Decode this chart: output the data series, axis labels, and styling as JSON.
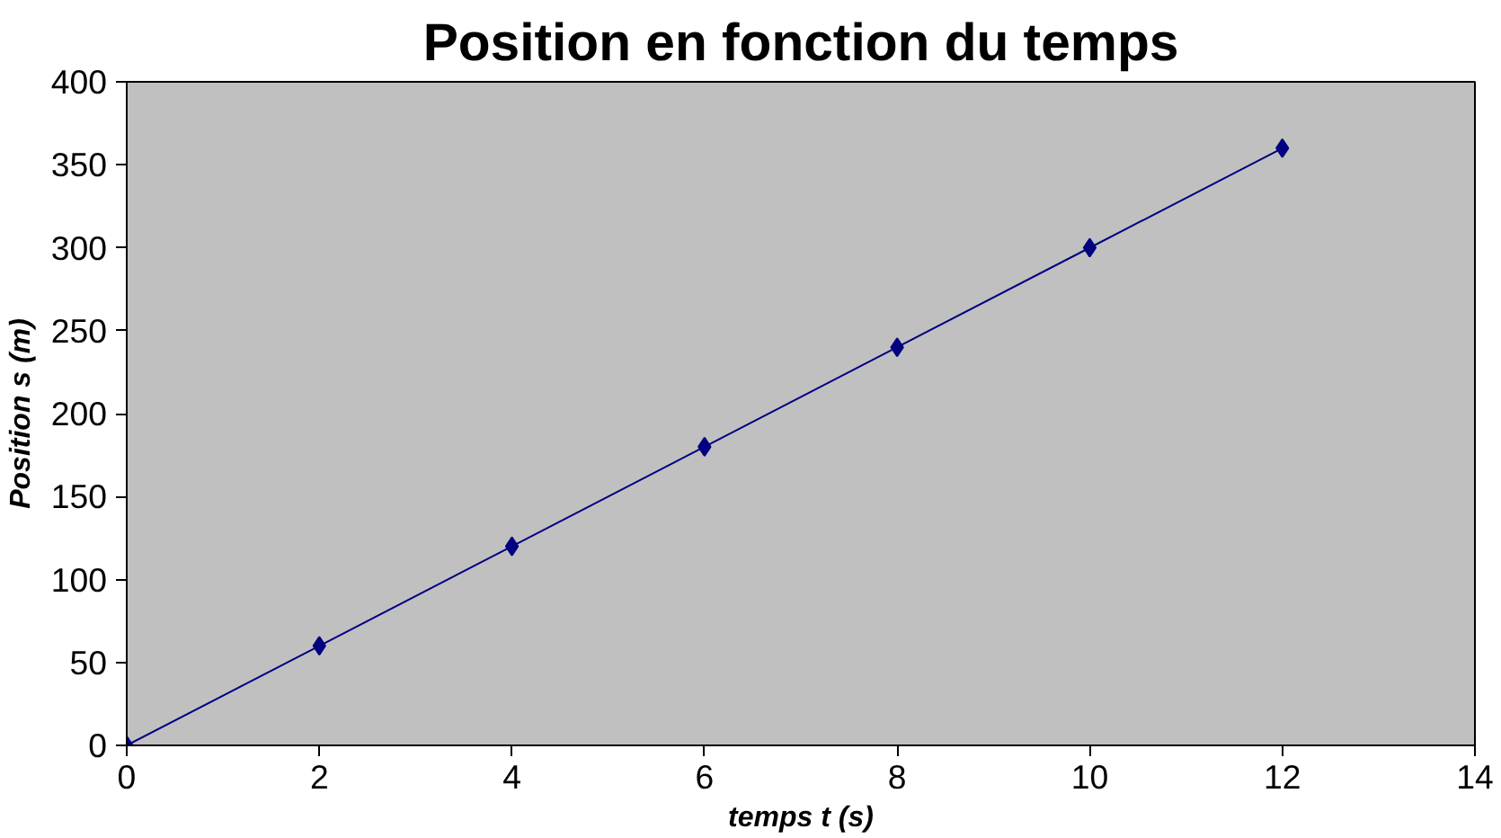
{
  "chart_data": {
    "type": "line",
    "title": "Position en fonction du temps",
    "xlabel": "temps t (s)",
    "ylabel": "Position s (m)",
    "x": [
      0,
      2,
      4,
      6,
      8,
      10,
      12
    ],
    "series": [
      {
        "color": "#000080",
        "values": [
          0,
          60,
          120,
          180,
          240,
          300,
          360
        ]
      }
    ],
    "xlim": [
      0,
      14
    ],
    "xticks": [
      0,
      2,
      4,
      6,
      8,
      10,
      12,
      14
    ],
    "ylim": [
      0,
      400
    ],
    "yticks": [
      0,
      50,
      100,
      150,
      200,
      250,
      300,
      350,
      400
    ],
    "grid": false,
    "marker": "diamond",
    "line_style": "solid"
  }
}
